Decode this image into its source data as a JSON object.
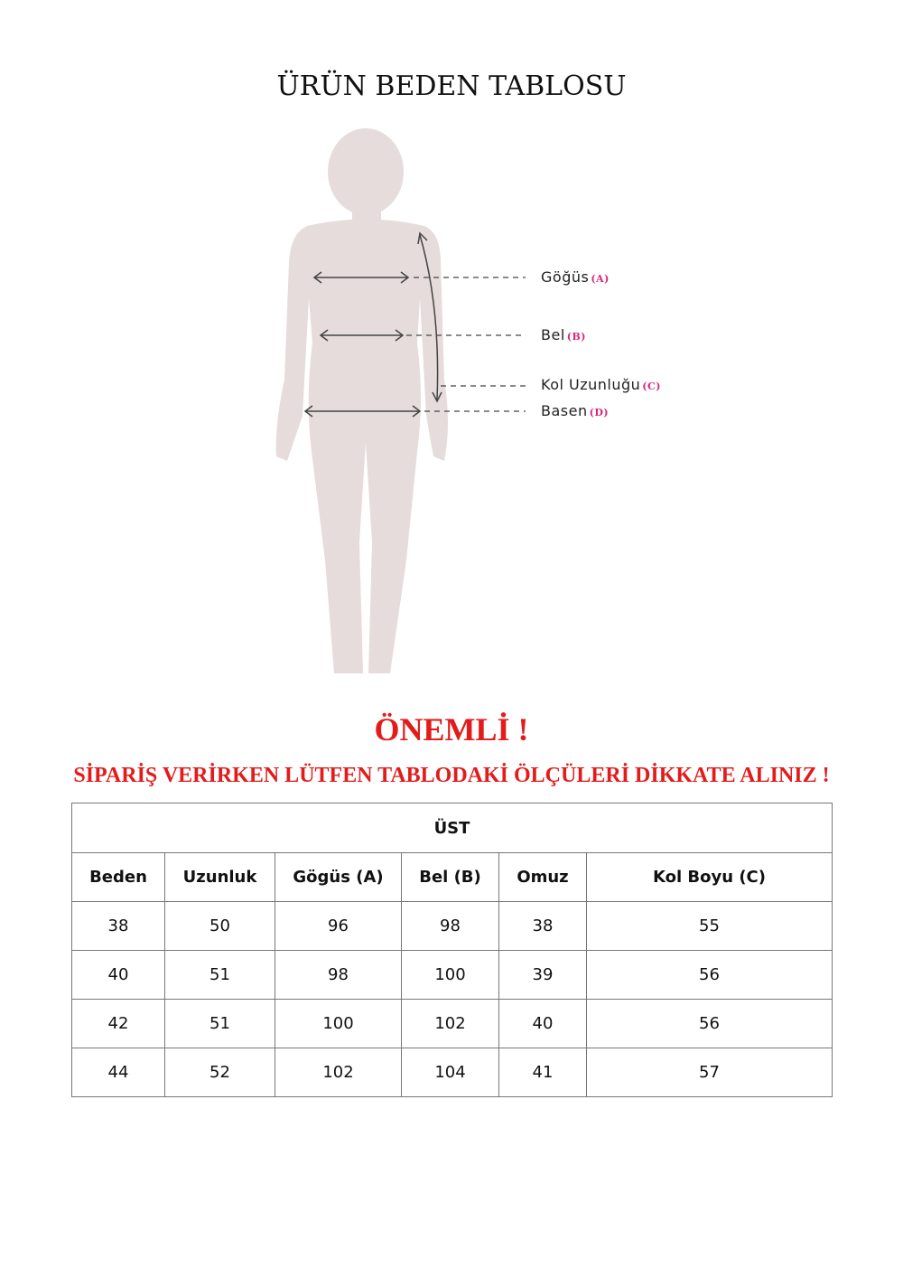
{
  "title": "ÜRÜN BEDEN TABLOSU",
  "figure": {
    "labels": [
      {
        "text": "Göğüs",
        "tag": "(A)"
      },
      {
        "text": "Bel",
        "tag": "(B)"
      },
      {
        "text": "Kol Uzunluğu",
        "tag": "(C)"
      },
      {
        "text": "Basen",
        "tag": "(D)"
      }
    ],
    "silhouette_color": "#e6dcdc",
    "tag_color": "#d6267c"
  },
  "notice": {
    "heading": "ÖNEMLİ !",
    "message": "SİPARİŞ VERİRKEN LÜTFEN TABLODAKİ ÖLÇÜLERİ DİKKATE ALINIZ !",
    "color": "#e41b1b"
  },
  "table": {
    "section": "ÜST",
    "headers": [
      "Beden",
      "Uzunluk",
      "Gögüs (A)",
      "Bel (B)",
      "Omuz",
      "Kol Boyu (C)"
    ],
    "rows": [
      [
        "38",
        "50",
        "96",
        "98",
        "38",
        "55"
      ],
      [
        "40",
        "51",
        "98",
        "100",
        "39",
        "56"
      ],
      [
        "42",
        "51",
        "100",
        "102",
        "40",
        "56"
      ],
      [
        "44",
        "52",
        "102",
        "104",
        "41",
        "57"
      ]
    ]
  }
}
